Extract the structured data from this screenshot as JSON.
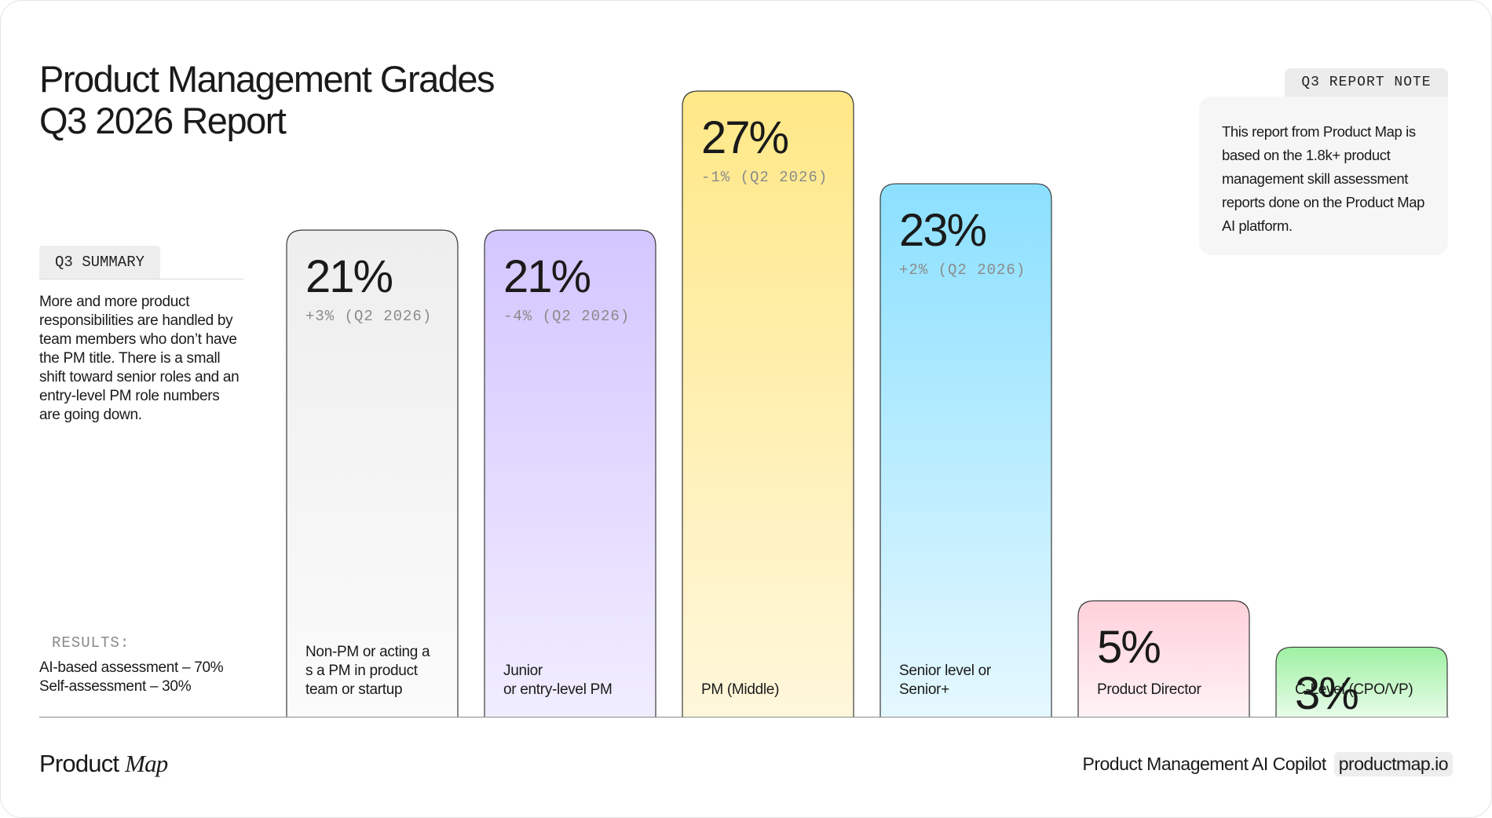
{
  "title": {
    "line1": "Product Management Grades",
    "line2": "Q3 2026 Report"
  },
  "summary": {
    "tag": "Q3 SUMMARY",
    "text": "More and more product responsibilities are handled by team members who don’t have the PM title. There is a small shift toward senior roles and an entry-level PM role numbers are going down."
  },
  "results": {
    "label": "RESULTS:",
    "items": [
      "AI-based assessment – 70%",
      "Self-assessment – 30%"
    ]
  },
  "note": {
    "tag": "Q3 REPORT NOTE",
    "text": "This report from Product Map is based on the 1.8k+ product management skill assessment reports done on the Product Map AI platform."
  },
  "chart_data": {
    "type": "bar",
    "categories": [
      "Non-PM or acting a s a PM in product team or startup",
      "Junior or entry-level PM",
      "PM (Middle)",
      "Senior level or Senior+",
      "Product Director",
      "C-Level (CPO/VP)"
    ],
    "values": [
      21,
      21,
      27,
      23,
      5,
      3
    ],
    "value_labels": [
      "21%",
      "21%",
      "27%",
      "23%",
      "5%",
      "3%"
    ],
    "change_labels": [
      "+3% (Q2 2026)",
      "-4% (Q2 2026)",
      "-1% (Q2 2026)",
      "+2% (Q2 2026)",
      "",
      ""
    ],
    "label_lines": [
      [
        "Non-PM or acting a",
        "s a PM in product",
        "team or startup"
      ],
      [
        "Junior",
        "or entry-level PM"
      ],
      [
        "PM (Middle)"
      ],
      [
        "Senior level or",
        "Senior+"
      ],
      [
        "Product Director"
      ],
      [
        "C-Level (CPO/VP)"
      ]
    ],
    "colors": [
      [
        "#eeeeee",
        "#fbfbfb"
      ],
      [
        "#d3c6ff",
        "#f1edff"
      ],
      [
        "#ffe887",
        "#fff7dc"
      ],
      [
        "#8be0ff",
        "#e5f8ff"
      ],
      [
        "#ffd1db",
        "#fff2f5"
      ],
      [
        "#9ff0a2",
        "#e8fce9"
      ]
    ],
    "ylim": [
      0,
      27
    ],
    "xlabel": "",
    "ylabel": "",
    "grid": false
  },
  "footer": {
    "brand_regular": "Product ",
    "brand_italic": "Map",
    "tagline": "Product Management AI Copilot",
    "site": "productmap.io"
  }
}
